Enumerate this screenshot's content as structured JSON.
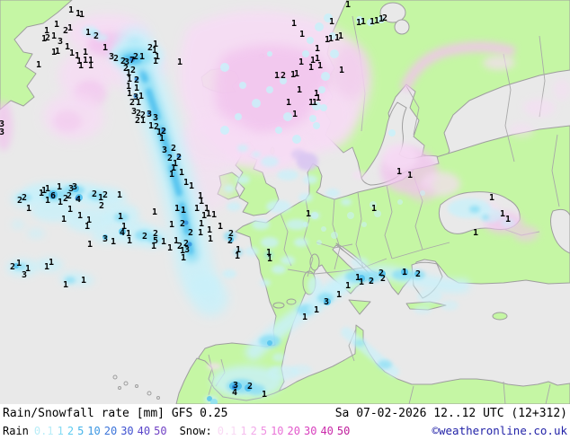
{
  "caption": {
    "title": "Rain/Snowfall rate [mm] GFS 0.25",
    "datetime": "Sa 07-02-2026 12..12 UTC (12+312)",
    "copyright": "©weatheronline.co.uk"
  },
  "legend": {
    "rain_label": "Rain",
    "rain_steps": [
      {
        "value": "0.1",
        "color": "#b9edf8"
      },
      {
        "value": "1",
        "color": "#86dcf4"
      },
      {
        "value": "2",
        "color": "#5fcdf1"
      },
      {
        "value": "5",
        "color": "#46b5ea"
      },
      {
        "value": "10",
        "color": "#3a96e2"
      },
      {
        "value": "20",
        "color": "#3b74d9"
      },
      {
        "value": "30",
        "color": "#3e51d0"
      },
      {
        "value": "40",
        "color": "#5a45ca"
      },
      {
        "value": "50",
        "color": "#7040c4"
      }
    ],
    "snow_label": "Snow:",
    "snow_steps": [
      {
        "value": "0.1",
        "color": "#f9d9f4"
      },
      {
        "value": "1",
        "color": "#f5bdee"
      },
      {
        "value": "2",
        "color": "#f2a9e9"
      },
      {
        "value": "5",
        "color": "#ef90e2"
      },
      {
        "value": "10",
        "color": "#ea74d8"
      },
      {
        "value": "20",
        "color": "#e257cb"
      },
      {
        "value": "30",
        "color": "#d83fbe"
      },
      {
        "value": "40",
        "color": "#cb2cab"
      },
      {
        "value": "50",
        "color": "#bf1d9b"
      }
    ]
  },
  "map": {
    "ocean_color": "#e9e9e9",
    "land_color": "#c5f6a4",
    "border_color": "#9e9e9e",
    "rain_colors": {
      "light": "#c9f1fa",
      "mid": "#8adef5",
      "strong": "#4fc0ee",
      "dark": "#2a88d8"
    },
    "snow_colors": {
      "light": "#f7dcf5",
      "mid": "#f2c3ee",
      "lavender": "#d9c6f2"
    },
    "values": [
      [
        79,
        10,
        "1"
      ],
      [
        87,
        14,
        "1"
      ],
      [
        91,
        15,
        "1"
      ],
      [
        98,
        35,
        "1"
      ],
      [
        107,
        39,
        "2"
      ],
      [
        63,
        26,
        "1"
      ],
      [
        52,
        33,
        "1"
      ],
      [
        73,
        33,
        "2"
      ],
      [
        78,
        30,
        "1"
      ],
      [
        49,
        42,
        "1"
      ],
      [
        53,
        41,
        "2"
      ],
      [
        60,
        39,
        "1"
      ],
      [
        67,
        45,
        "3"
      ],
      [
        75,
        51,
        "1"
      ],
      [
        60,
        57,
        "1"
      ],
      [
        64,
        56,
        "1"
      ],
      [
        80,
        58,
        "1"
      ],
      [
        86,
        61,
        "1"
      ],
      [
        95,
        57,
        "1"
      ],
      [
        88,
        67,
        "1"
      ],
      [
        95,
        66,
        "1"
      ],
      [
        101,
        66,
        "1"
      ],
      [
        90,
        72,
        "1"
      ],
      [
        101,
        72,
        "1"
      ],
      [
        43,
        71,
        "1"
      ],
      [
        2,
        137,
        "3"
      ],
      [
        2,
        146,
        "3"
      ],
      [
        117,
        52,
        "1"
      ],
      [
        124,
        62,
        "3"
      ],
      [
        129,
        64,
        "2"
      ],
      [
        137,
        67,
        "2"
      ],
      [
        141,
        68,
        "3"
      ],
      [
        147,
        66,
        "7"
      ],
      [
        151,
        62,
        "2"
      ],
      [
        158,
        62,
        "1"
      ],
      [
        140,
        75,
        "2"
      ],
      [
        148,
        77,
        "2"
      ],
      [
        143,
        80,
        "1"
      ],
      [
        144,
        87,
        "1"
      ],
      [
        152,
        88,
        "2"
      ],
      [
        143,
        95,
        "1"
      ],
      [
        152,
        97,
        "1"
      ],
      [
        144,
        103,
        "1"
      ],
      [
        151,
        107,
        "3"
      ],
      [
        157,
        106,
        "1"
      ],
      [
        147,
        113,
        "2"
      ],
      [
        154,
        113,
        "1"
      ],
      [
        149,
        123,
        "3"
      ],
      [
        154,
        125,
        "2"
      ],
      [
        159,
        127,
        "2"
      ],
      [
        166,
        126,
        "3"
      ],
      [
        153,
        133,
        "2"
      ],
      [
        159,
        133,
        "1"
      ],
      [
        173,
        130,
        "3"
      ],
      [
        168,
        139,
        "1"
      ],
      [
        174,
        140,
        "2"
      ],
      [
        177,
        146,
        "1"
      ],
      [
        182,
        145,
        "2"
      ],
      [
        180,
        153,
        "1"
      ],
      [
        183,
        166,
        "3"
      ],
      [
        193,
        164,
        "2"
      ],
      [
        189,
        175,
        "2"
      ],
      [
        199,
        174,
        "2"
      ],
      [
        195,
        181,
        "1"
      ],
      [
        193,
        186,
        "1"
      ],
      [
        191,
        193,
        "1"
      ],
      [
        202,
        191,
        "1"
      ],
      [
        207,
        202,
        "1"
      ],
      [
        213,
        206,
        "1"
      ],
      [
        197,
        231,
        "1"
      ],
      [
        204,
        233,
        "1"
      ],
      [
        219,
        231,
        "1"
      ],
      [
        223,
        217,
        "1"
      ],
      [
        224,
        223,
        "1"
      ],
      [
        230,
        231,
        "1"
      ],
      [
        232,
        237,
        "1"
      ],
      [
        227,
        239,
        "1"
      ],
      [
        238,
        238,
        "1"
      ],
      [
        224,
        248,
        "1"
      ],
      [
        203,
        248,
        "2"
      ],
      [
        191,
        249,
        "1"
      ],
      [
        212,
        258,
        "2"
      ],
      [
        196,
        267,
        "1"
      ],
      [
        203,
        278,
        "1"
      ],
      [
        208,
        277,
        "3"
      ],
      [
        207,
        270,
        "2"
      ],
      [
        200,
        273,
        "2"
      ],
      [
        189,
        275,
        "1"
      ],
      [
        204,
        286,
        "1"
      ],
      [
        233,
        255,
        "1"
      ],
      [
        245,
        251,
        "1"
      ],
      [
        223,
        258,
        "1"
      ],
      [
        234,
        265,
        "1"
      ],
      [
        257,
        259,
        "2"
      ],
      [
        256,
        267,
        "2"
      ],
      [
        265,
        277,
        "1"
      ],
      [
        264,
        284,
        "1"
      ],
      [
        299,
        280,
        "1"
      ],
      [
        300,
        287,
        "1"
      ],
      [
        173,
        48,
        "1"
      ],
      [
        167,
        52,
        "2"
      ],
      [
        172,
        55,
        "1"
      ],
      [
        175,
        62,
        "1"
      ],
      [
        173,
        67,
        "1"
      ],
      [
        200,
        68,
        "1"
      ],
      [
        327,
        25,
        "1"
      ],
      [
        336,
        37,
        "1"
      ],
      [
        369,
        23,
        "1"
      ],
      [
        387,
        4,
        "1"
      ],
      [
        399,
        24,
        "1"
      ],
      [
        404,
        23,
        "1"
      ],
      [
        414,
        23,
        "1"
      ],
      [
        419,
        22,
        "1"
      ],
      [
        424,
        20,
        "1"
      ],
      [
        428,
        19,
        "2"
      ],
      [
        364,
        43,
        "1"
      ],
      [
        368,
        42,
        "1"
      ],
      [
        375,
        41,
        "1"
      ],
      [
        379,
        39,
        "1"
      ],
      [
        353,
        53,
        "1"
      ],
      [
        348,
        66,
        "1"
      ],
      [
        353,
        64,
        "1"
      ],
      [
        356,
        72,
        "1"
      ],
      [
        346,
        74,
        "1"
      ],
      [
        335,
        68,
        "1"
      ],
      [
        308,
        83,
        "1"
      ],
      [
        315,
        83,
        "2"
      ],
      [
        326,
        82,
        "1"
      ],
      [
        330,
        81,
        "1"
      ],
      [
        380,
        77,
        "1"
      ],
      [
        333,
        99,
        "1"
      ],
      [
        321,
        113,
        "1"
      ],
      [
        352,
        103,
        "1"
      ],
      [
        354,
        108,
        "1"
      ],
      [
        346,
        113,
        "1"
      ],
      [
        350,
        113,
        "1"
      ],
      [
        328,
        126,
        "1"
      ],
      [
        49,
        211,
        "1"
      ],
      [
        53,
        209,
        "1"
      ],
      [
        27,
        219,
        "2"
      ],
      [
        22,
        222,
        "2"
      ],
      [
        46,
        214,
        "1"
      ],
      [
        59,
        217,
        "6"
      ],
      [
        53,
        222,
        "1"
      ],
      [
        66,
        207,
        "1"
      ],
      [
        79,
        209,
        "3"
      ],
      [
        83,
        207,
        "3"
      ],
      [
        73,
        220,
        "2"
      ],
      [
        77,
        217,
        "2"
      ],
      [
        87,
        221,
        "4"
      ],
      [
        67,
        224,
        "1"
      ],
      [
        105,
        215,
        "2"
      ],
      [
        117,
        216,
        "2"
      ],
      [
        112,
        219,
        "1"
      ],
      [
        113,
        228,
        "2"
      ],
      [
        133,
        216,
        "1"
      ],
      [
        32,
        231,
        "1"
      ],
      [
        78,
        232,
        "1"
      ],
      [
        71,
        243,
        "1"
      ],
      [
        89,
        239,
        "1"
      ],
      [
        99,
        244,
        "1"
      ],
      [
        97,
        251,
        "1"
      ],
      [
        134,
        240,
        "1"
      ],
      [
        138,
        251,
        "1"
      ],
      [
        136,
        258,
        "4"
      ],
      [
        117,
        265,
        "3"
      ],
      [
        126,
        268,
        "1"
      ],
      [
        144,
        267,
        "1"
      ],
      [
        143,
        259,
        "1"
      ],
      [
        161,
        262,
        "2"
      ],
      [
        173,
        259,
        "2"
      ],
      [
        173,
        267,
        "5"
      ],
      [
        182,
        268,
        "1"
      ],
      [
        171,
        273,
        "1"
      ],
      [
        100,
        271,
        "1"
      ],
      [
        172,
        235,
        "1"
      ],
      [
        14,
        296,
        "2"
      ],
      [
        21,
        292,
        "1"
      ],
      [
        27,
        305,
        "3"
      ],
      [
        31,
        298,
        "1"
      ],
      [
        52,
        296,
        "1"
      ],
      [
        57,
        291,
        "1"
      ],
      [
        93,
        311,
        "1"
      ],
      [
        73,
        316,
        "1"
      ],
      [
        343,
        237,
        "1"
      ],
      [
        416,
        231,
        "1"
      ],
      [
        444,
        190,
        "1"
      ],
      [
        456,
        194,
        "1"
      ],
      [
        547,
        219,
        "1"
      ],
      [
        559,
        237,
        "1"
      ],
      [
        565,
        243,
        "1"
      ],
      [
        529,
        258,
        "1"
      ],
      [
        398,
        308,
        "1"
      ],
      [
        402,
        313,
        "1"
      ],
      [
        387,
        317,
        "1"
      ],
      [
        424,
        303,
        "2"
      ],
      [
        426,
        309,
        "2"
      ],
      [
        413,
        312,
        "2"
      ],
      [
        450,
        302,
        "1"
      ],
      [
        465,
        304,
        "2"
      ],
      [
        377,
        327,
        "1"
      ],
      [
        363,
        335,
        "3"
      ],
      [
        352,
        344,
        "1"
      ],
      [
        339,
        352,
        "1"
      ],
      [
        262,
        428,
        "3"
      ],
      [
        278,
        429,
        "2"
      ],
      [
        261,
        436,
        "4"
      ],
      [
        294,
        438,
        "1"
      ]
    ]
  }
}
